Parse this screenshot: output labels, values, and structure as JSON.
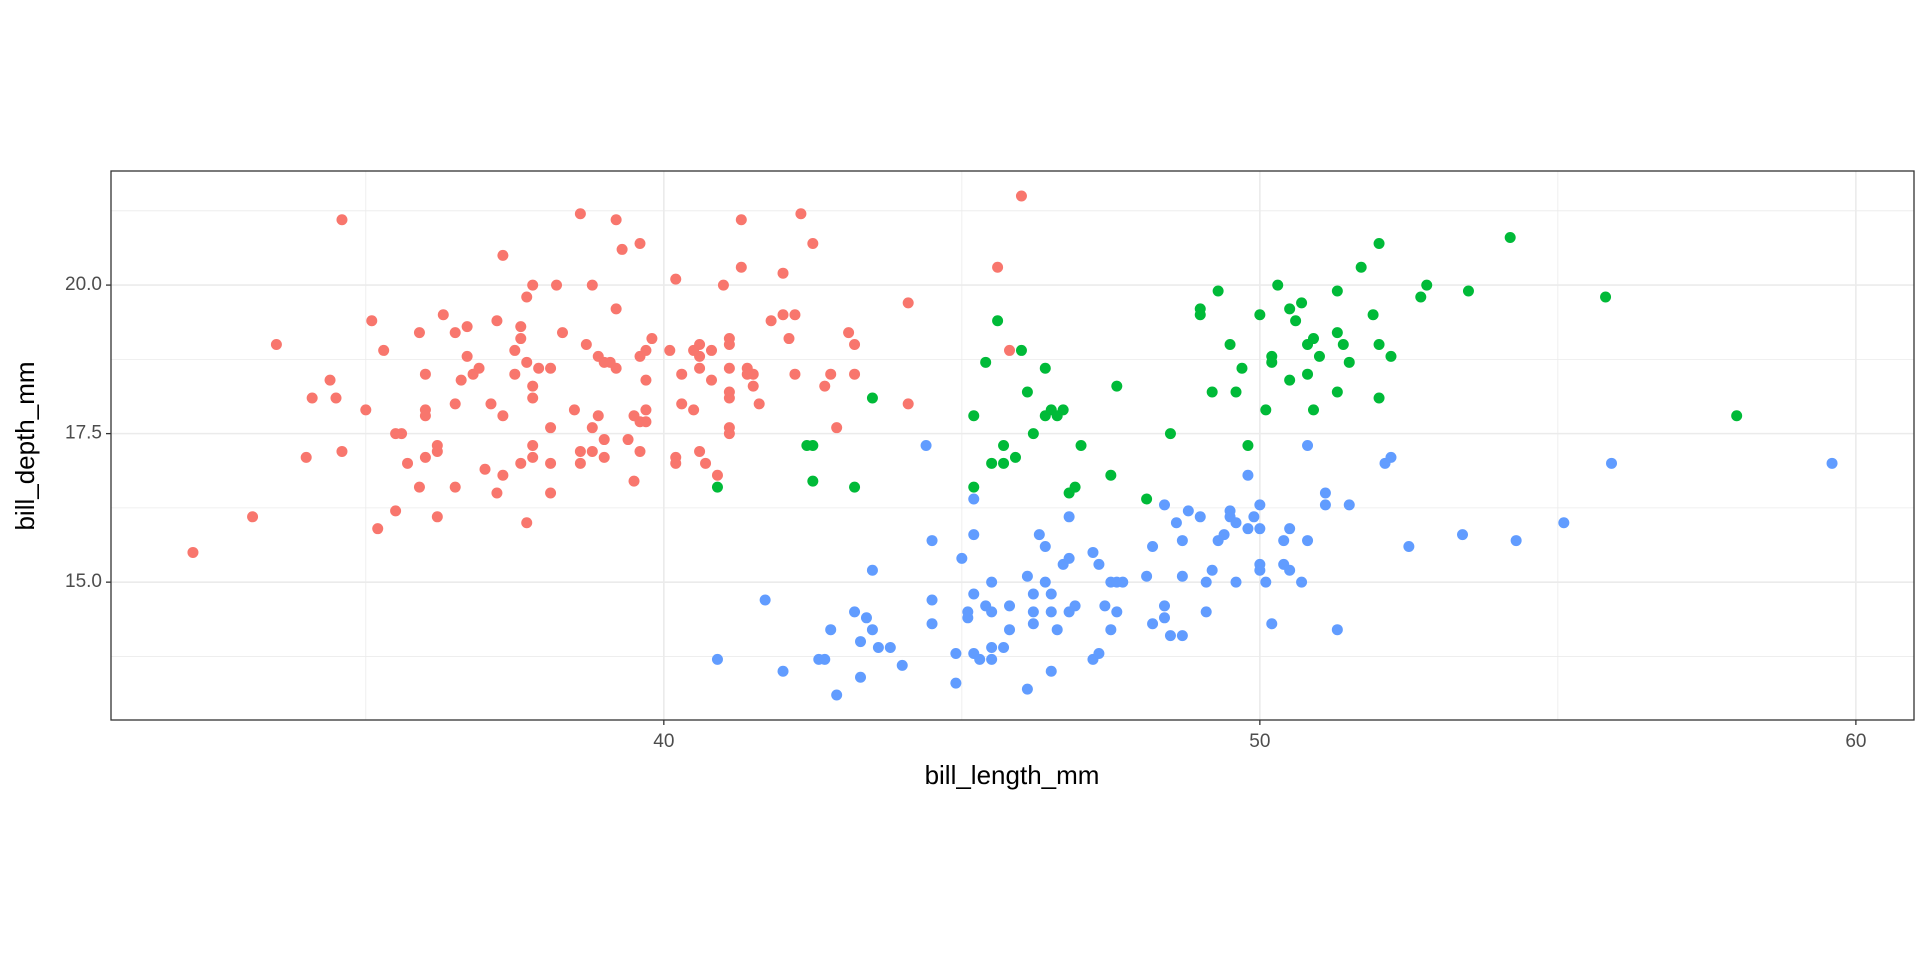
{
  "chart_data": {
    "type": "scatter",
    "xlabel": "bill_length_mm",
    "ylabel": "bill_depth_mm",
    "xlim": [
      30.725,
      60.975
    ],
    "ylim": [
      12.68,
      21.92
    ],
    "xticks": [
      40,
      50,
      60
    ],
    "yticks": [
      {
        "value": 15,
        "label": "15.0"
      },
      17.5,
      {
        "value": 20,
        "label": "20.0"
      }
    ],
    "minor_xticks": [
      35,
      45,
      55
    ],
    "minor_yticks": [
      13.75,
      16.25,
      18.75,
      21.25
    ],
    "grid": true,
    "series": [
      {
        "color": "#F8766D",
        "x": [
          32.1,
          33.1,
          33.5,
          34.1,
          34.0,
          34.4,
          34.5,
          34.6,
          34.6,
          35.0,
          35.1,
          35.2,
          35.3,
          35.5,
          35.5,
          35.6,
          35.7,
          35.9,
          36.0,
          36.0,
          36.0,
          36.0,
          35.9,
          36.2,
          36.2,
          36.2,
          36.3,
          36.5,
          36.5,
          36.5,
          36.6,
          36.7,
          36.7,
          36.8,
          36.9,
          37.0,
          37.1,
          37.2,
          37.2,
          37.3,
          37.3,
          37.3,
          37.5,
          37.5,
          37.6,
          37.6,
          37.6,
          37.7,
          37.7,
          37.7,
          37.8,
          37.8,
          37.8,
          37.8,
          37.8,
          37.9,
          38.1,
          38.1,
          38.1,
          38.1,
          38.2,
          38.3,
          38.5,
          38.6,
          38.6,
          38.6,
          38.7,
          38.8,
          38.8,
          38.8,
          38.9,
          38.9,
          39.0,
          39.0,
          39.0,
          39.1,
          39.2,
          39.2,
          39.2,
          39.3,
          39.4,
          39.5,
          39.5,
          39.6,
          39.6,
          39.6,
          39.6,
          39.7,
          39.7,
          39.7,
          39.7,
          39.8,
          40.1,
          40.2,
          40.2,
          40.2,
          40.3,
          40.3,
          40.5,
          40.5,
          40.6,
          40.6,
          40.6,
          40.6,
          40.7,
          40.8,
          40.8,
          40.9,
          41.0,
          41.1,
          41.1,
          41.1,
          41.1,
          41.1,
          41.1,
          41.1,
          41.3,
          41.3,
          41.4,
          41.4,
          41.5,
          41.5,
          41.6,
          41.8,
          42.0,
          42.0,
          42.1,
          42.2,
          42.2,
          42.3,
          42.5,
          42.7,
          42.8,
          42.9,
          43.1,
          43.2,
          43.2,
          44.1,
          44.1,
          45.8,
          45.6,
          46.0
        ],
        "values": [
          15.5,
          16.1,
          19.0,
          18.1,
          17.1,
          18.4,
          18.1,
          21.1,
          17.2,
          17.9,
          19.4,
          15.9,
          18.9,
          16.2,
          17.5,
          17.5,
          17.0,
          19.2,
          18.5,
          17.9,
          17.8,
          17.1,
          16.6,
          16.1,
          17.3,
          17.2,
          19.5,
          19.2,
          16.6,
          18.0,
          18.4,
          19.3,
          18.8,
          18.5,
          18.6,
          16.9,
          18.0,
          19.4,
          16.5,
          20.5,
          17.8,
          16.8,
          18.9,
          18.5,
          19.3,
          19.1,
          17.0,
          19.8,
          18.7,
          16.0,
          20.0,
          18.3,
          18.1,
          17.3,
          17.1,
          18.6,
          18.6,
          17.6,
          17.0,
          16.5,
          20.0,
          19.2,
          17.9,
          21.2,
          17.2,
          17.0,
          19.0,
          20.0,
          17.6,
          17.2,
          18.8,
          17.8,
          18.7,
          17.1,
          17.4,
          18.7,
          21.1,
          18.6,
          19.6,
          20.6,
          17.4,
          16.7,
          17.8,
          20.7,
          18.8,
          17.2,
          17.7,
          18.9,
          18.4,
          17.9,
          17.7,
          19.1,
          18.9,
          20.1,
          17.1,
          17.0,
          18.0,
          18.5,
          17.9,
          18.9,
          18.6,
          18.8,
          19.0,
          17.2,
          17.0,
          18.4,
          18.9,
          16.8,
          20.0,
          19.1,
          19.0,
          18.6,
          18.2,
          18.1,
          17.6,
          17.5,
          21.1,
          20.3,
          18.6,
          18.5,
          18.5,
          18.3,
          18.0,
          19.4,
          20.2,
          19.5,
          19.1,
          19.5,
          18.5,
          21.2,
          20.7,
          18.3,
          18.5,
          17.6,
          19.2,
          19.0,
          18.5,
          19.7,
          18.0,
          18.9,
          20.3,
          21.5
        ]
      },
      {
        "color": "#00BA38",
        "x": [
          40.9,
          42.4,
          42.5,
          42.5,
          43.2,
          43.5,
          45.2,
          45.2,
          45.4,
          45.5,
          45.6,
          45.7,
          45.7,
          45.9,
          46.0,
          46.1,
          46.2,
          46.4,
          46.4,
          46.5,
          46.6,
          46.7,
          46.8,
          46.9,
          47.0,
          47.6,
          47.5,
          48.1,
          48.5,
          49.0,
          49.0,
          49.2,
          49.3,
          49.5,
          49.6,
          49.7,
          49.8,
          50.0,
          50.1,
          50.2,
          50.2,
          50.3,
          50.5,
          50.5,
          50.6,
          50.7,
          50.8,
          50.8,
          50.9,
          50.9,
          51.0,
          51.3,
          51.3,
          51.3,
          51.4,
          51.5,
          51.7,
          51.9,
          52.0,
          52.0,
          52.0,
          52.2,
          52.7,
          52.8,
          53.5,
          54.2,
          55.8,
          58.0
        ],
        "values": [
          16.6,
          17.3,
          17.3,
          16.7,
          16.6,
          18.1,
          17.8,
          16.6,
          18.7,
          17.0,
          19.4,
          17.3,
          17.0,
          17.1,
          18.9,
          18.2,
          17.5,
          18.6,
          17.8,
          17.9,
          17.8,
          17.9,
          16.5,
          16.6,
          17.3,
          18.3,
          16.8,
          16.4,
          17.5,
          19.6,
          19.5,
          18.2,
          19.9,
          19.0,
          18.2,
          18.6,
          17.3,
          19.5,
          17.9,
          18.8,
          18.7,
          20.0,
          19.6,
          18.4,
          19.4,
          19.7,
          18.5,
          19.0,
          19.1,
          17.9,
          18.8,
          19.9,
          19.2,
          18.2,
          19.0,
          18.7,
          20.3,
          19.5,
          20.7,
          19.0,
          18.1,
          18.8,
          19.8,
          20.0,
          19.9,
          20.8,
          19.8,
          17.8
        ]
      },
      {
        "color": "#619CFF",
        "x": [
          40.9,
          41.7,
          42.0,
          42.6,
          42.7,
          42.8,
          42.9,
          43.2,
          43.3,
          43.3,
          43.4,
          43.5,
          43.5,
          43.6,
          43.8,
          44.0,
          44.4,
          44.5,
          44.5,
          44.5,
          44.9,
          44.9,
          45.0,
          45.1,
          45.1,
          45.2,
          45.2,
          45.2,
          45.2,
          45.3,
          45.4,
          45.5,
          45.5,
          45.5,
          45.5,
          45.7,
          45.8,
          45.8,
          46.1,
          46.1,
          46.2,
          46.2,
          46.2,
          46.3,
          46.4,
          46.4,
          46.5,
          46.5,
          46.5,
          46.6,
          46.7,
          46.8,
          46.8,
          46.8,
          46.9,
          47.2,
          47.2,
          47.3,
          47.3,
          47.4,
          47.5,
          47.5,
          47.6,
          47.6,
          47.7,
          48.1,
          48.2,
          48.2,
          48.4,
          48.4,
          48.4,
          48.5,
          48.6,
          48.7,
          48.7,
          48.7,
          48.8,
          49.0,
          49.1,
          49.1,
          49.2,
          49.3,
          49.4,
          49.5,
          49.5,
          49.6,
          49.6,
          49.8,
          49.8,
          49.9,
          50.0,
          50.0,
          50.0,
          50.0,
          50.1,
          50.2,
          50.4,
          50.4,
          50.5,
          50.5,
          50.7,
          50.8,
          50.8,
          51.1,
          51.1,
          51.3,
          51.5,
          52.1,
          52.2,
          52.5,
          53.4,
          54.3,
          55.1,
          55.9,
          59.6
        ],
        "values": [
          13.7,
          14.7,
          13.5,
          13.7,
          13.7,
          14.2,
          13.1,
          14.5,
          14.0,
          13.4,
          14.4,
          14.2,
          15.2,
          13.9,
          13.9,
          13.6,
          17.3,
          15.7,
          14.3,
          14.7,
          13.8,
          13.3,
          15.4,
          14.5,
          14.4,
          16.4,
          15.8,
          14.8,
          13.8,
          13.7,
          14.6,
          15.0,
          14.5,
          13.9,
          13.7,
          13.9,
          14.6,
          14.2,
          15.1,
          13.2,
          14.8,
          14.5,
          14.3,
          15.8,
          15.6,
          15.0,
          14.8,
          14.5,
          13.5,
          14.2,
          15.3,
          15.4,
          14.5,
          16.1,
          14.6,
          13.7,
          15.5,
          13.8,
          15.3,
          14.6,
          15.0,
          14.2,
          14.5,
          15.0,
          15.0,
          15.1,
          15.6,
          14.3,
          16.3,
          14.6,
          14.4,
          14.1,
          16.0,
          15.7,
          15.1,
          14.1,
          16.2,
          16.1,
          15.0,
          14.5,
          15.2,
          15.7,
          15.8,
          16.2,
          16.1,
          15.0,
          16.0,
          16.8,
          15.9,
          16.1,
          16.3,
          15.9,
          15.3,
          15.2,
          15.0,
          14.3,
          15.7,
          15.3,
          15.9,
          15.2,
          15.0,
          15.7,
          17.3,
          16.5,
          16.3,
          14.2,
          16.3,
          17.0,
          17.1,
          15.6,
          15.8,
          15.7,
          16.0,
          17.0,
          17.0
        ]
      }
    ]
  }
}
